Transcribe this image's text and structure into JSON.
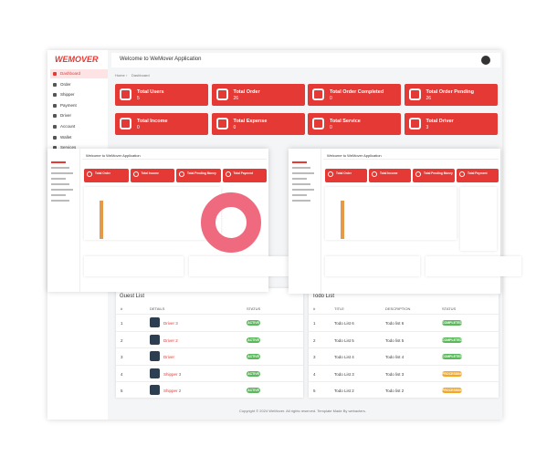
{
  "main": {
    "logo": "WEMOVER",
    "header_title": "Welcome to WeMover Application",
    "breadcrumb": [
      "Home",
      "Dashboard"
    ],
    "sidebar": [
      "Dashboard",
      "Order",
      "Shipper",
      "Payment",
      "Driver",
      "Account",
      "Wallet",
      "Services"
    ],
    "cards": [
      {
        "label": "Total Users",
        "value": 5
      },
      {
        "label": "Total Order",
        "value": 26
      },
      {
        "label": "Total Order Completed",
        "value": 0
      },
      {
        "label": "Total Order Pending",
        "value": 26
      },
      {
        "label": "Total Income",
        "value": 0
      },
      {
        "label": "Total Expense",
        "value": 0
      },
      {
        "label": "Total Service",
        "value": 0
      },
      {
        "label": "Total Driver",
        "value": 3
      }
    ],
    "guest_list": {
      "title": "Guest List",
      "columns": [
        "#",
        "DETAILS",
        "STATUS"
      ],
      "rows": [
        [
          "1",
          "Driver 3",
          "ACTIVE"
        ],
        [
          "2",
          "Driver 2",
          "ACTIVE"
        ],
        [
          "3",
          "Driver",
          "ACTIVE"
        ],
        [
          "4",
          "Shipper 3",
          "ACTIVE"
        ],
        [
          "5",
          "Shipper 2",
          "ACTIVE"
        ]
      ]
    },
    "todo_list": {
      "title": "Todo List",
      "columns": [
        "#",
        "TITLE",
        "DESCRIPTION",
        "STATUS"
      ],
      "rows": [
        [
          "1",
          "Todo List 6",
          "Todo list 6",
          "COMPLETED"
        ],
        [
          "2",
          "Todo List 5",
          "Todo list 5",
          "COMPLETED"
        ],
        [
          "3",
          "Todo List 4",
          "Todo list 4",
          "COMPLETED"
        ],
        [
          "4",
          "Todo List 3",
          "Todo list 3",
          "PROCESSING"
        ],
        [
          "5",
          "Todo List 2",
          "Todo list 2",
          "PROCESSING"
        ]
      ]
    },
    "footer": "Copyright © 2024 WeMover. All rights reserved. Template Made By webacters."
  },
  "overlay_left": {
    "header_title": "Welcome to WeMover Application",
    "cards": [
      "Total Order",
      "Total Income",
      "Total Pending Money",
      "Total Payment"
    ]
  },
  "overlay_right": {
    "header_title": "Welcome to WeMover Application",
    "cards": [
      "Total Order",
      "Total Income",
      "Total Pending Money",
      "Total Payment"
    ]
  }
}
